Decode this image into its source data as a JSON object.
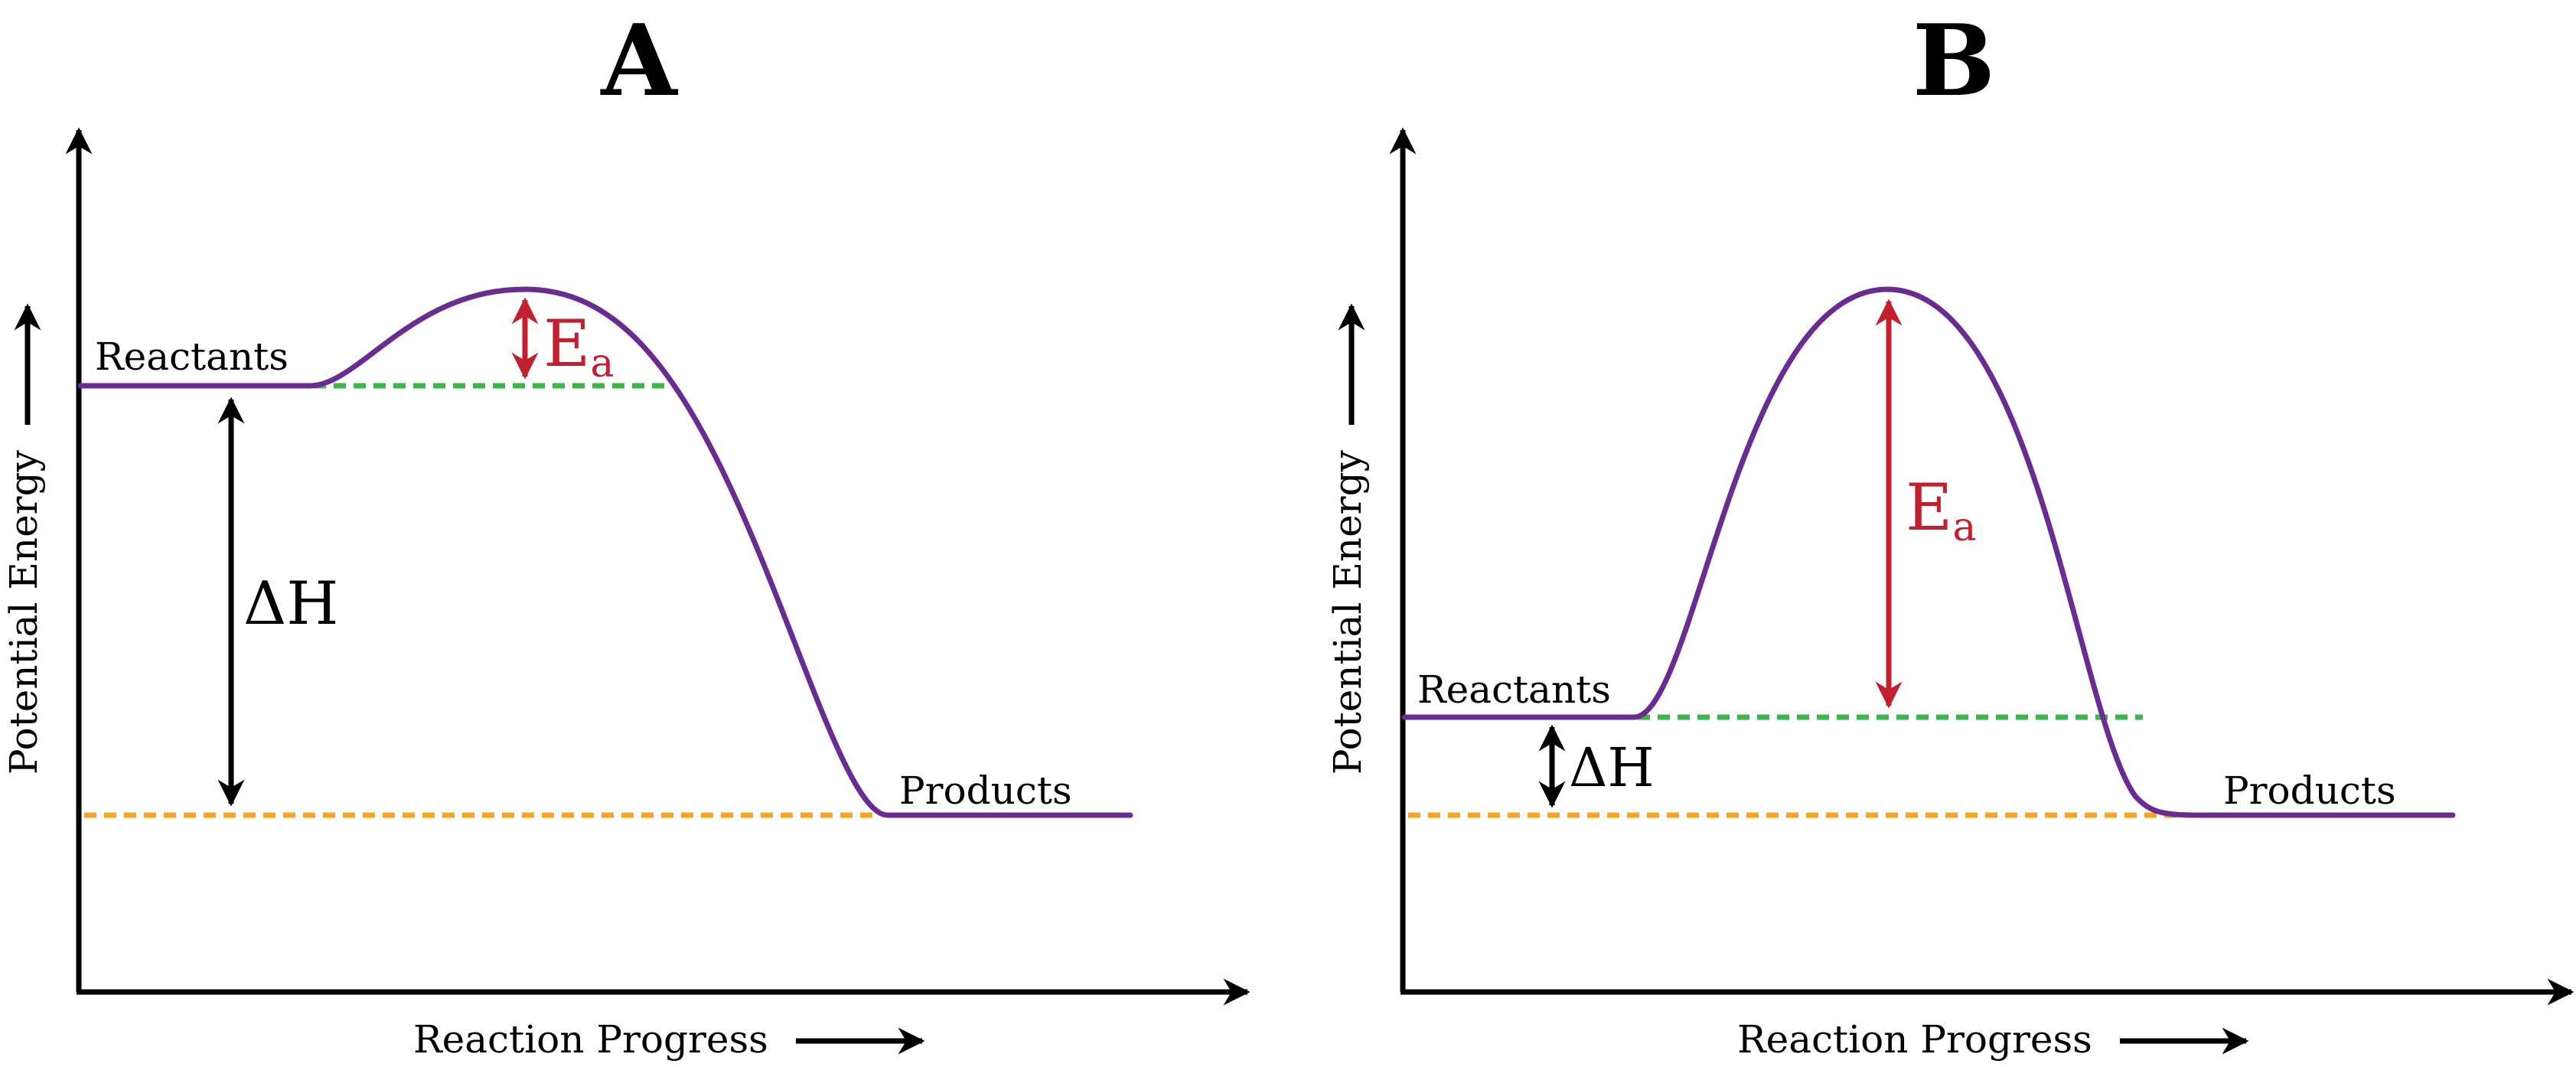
{
  "colors": {
    "curve": "#6a2c91",
    "activation_arrow": "#c3202f",
    "reactant_level_dashes": "#3cb54a",
    "product_level_dashes": "#f5a623",
    "axes": "#000000"
  },
  "panels": [
    {
      "title": "A",
      "y_axis_label": "Potential Energy",
      "x_axis_label": "Reaction Progress",
      "reactants_label": "Reactants",
      "products_label": "Products",
      "delta_h_label": "ΔH",
      "ea_label": "E",
      "ea_subscript": "a"
    },
    {
      "title": "B",
      "y_axis_label": "Potential Energy",
      "x_axis_label": "Reaction Progress",
      "reactants_label": "Reactants",
      "products_label": "Products",
      "delta_h_label": "ΔH",
      "ea_label": "E",
      "ea_subscript": "a"
    }
  ]
}
